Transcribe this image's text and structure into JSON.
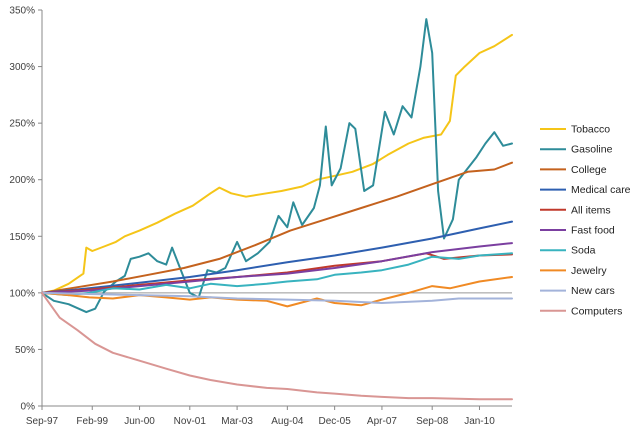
{
  "chart_data": {
    "type": "line",
    "ylim": [
      0,
      350
    ],
    "xlim": [
      "1997-09",
      "2010-12"
    ],
    "grid": false,
    "legend_position": "right",
    "y_ticks": [
      {
        "value": 0,
        "label": "0%"
      },
      {
        "value": 50,
        "label": "50%"
      },
      {
        "value": 100,
        "label": "100%"
      },
      {
        "value": 150,
        "label": "150%"
      },
      {
        "value": 200,
        "label": "200%"
      },
      {
        "value": 250,
        "label": "250%"
      },
      {
        "value": 300,
        "label": "300%"
      },
      {
        "value": 350,
        "label": "350%"
      }
    ],
    "x_ticks": [
      {
        "value": "1997-09",
        "label": "Sep-97"
      },
      {
        "value": "1999-02",
        "label": "Feb-99"
      },
      {
        "value": "2000-06",
        "label": "Jun-00"
      },
      {
        "value": "2001-11",
        "label": "Nov-01"
      },
      {
        "value": "2003-03",
        "label": "Mar-03"
      },
      {
        "value": "2004-08",
        "label": "Aug-04"
      },
      {
        "value": "2005-12",
        "label": "Dec-05"
      },
      {
        "value": "2007-04",
        "label": "Apr-07"
      },
      {
        "value": "2008-09",
        "label": "Sep-08"
      },
      {
        "value": "2010-01",
        "label": "Jan-10"
      }
    ],
    "series": [
      {
        "name": "Tobacco",
        "color": "#F5C518",
        "points": [
          [
            "1997-09",
            100
          ],
          [
            "1998-01",
            102
          ],
          [
            "1998-06",
            108
          ],
          [
            "1998-11",
            117
          ],
          [
            "1998-12",
            140
          ],
          [
            "1999-02",
            137
          ],
          [
            "1999-06",
            141
          ],
          [
            "1999-10",
            145
          ],
          [
            "2000-01",
            150
          ],
          [
            "2000-06",
            155
          ],
          [
            "2000-12",
            162
          ],
          [
            "2001-06",
            170
          ],
          [
            "2001-12",
            177
          ],
          [
            "2002-06",
            188
          ],
          [
            "2002-09",
            193
          ],
          [
            "2003-01",
            188
          ],
          [
            "2003-06",
            185
          ],
          [
            "2004-01",
            188
          ],
          [
            "2004-06",
            190
          ],
          [
            "2005-01",
            194
          ],
          [
            "2005-06",
            200
          ],
          [
            "2006-01",
            204
          ],
          [
            "2006-06",
            207
          ],
          [
            "2007-01",
            214
          ],
          [
            "2007-06",
            222
          ],
          [
            "2008-01",
            232
          ],
          [
            "2008-06",
            237
          ],
          [
            "2008-12",
            240
          ],
          [
            "2009-03",
            252
          ],
          [
            "2009-05",
            292
          ],
          [
            "2009-08",
            300
          ],
          [
            "2010-01",
            312
          ],
          [
            "2010-06",
            318
          ],
          [
            "2010-12",
            328
          ]
        ]
      },
      {
        "name": "Gasoline",
        "color": "#2E8C99",
        "points": [
          [
            "1997-09",
            100
          ],
          [
            "1998-01",
            93
          ],
          [
            "1998-06",
            90
          ],
          [
            "1998-12",
            83
          ],
          [
            "1999-03",
            86
          ],
          [
            "1999-06",
            101
          ],
          [
            "1999-10",
            110
          ],
          [
            "2000-01",
            115
          ],
          [
            "2000-03",
            130
          ],
          [
            "2000-06",
            132
          ],
          [
            "2000-09",
            135
          ],
          [
            "2000-12",
            128
          ],
          [
            "2001-03",
            125
          ],
          [
            "2001-05",
            140
          ],
          [
            "2001-08",
            120
          ],
          [
            "2001-11",
            100
          ],
          [
            "2002-02",
            96
          ],
          [
            "2002-05",
            120
          ],
          [
            "2002-08",
            118
          ],
          [
            "2002-11",
            122
          ],
          [
            "2003-03",
            145
          ],
          [
            "2003-06",
            128
          ],
          [
            "2003-10",
            135
          ],
          [
            "2004-02",
            145
          ],
          [
            "2004-05",
            168
          ],
          [
            "2004-08",
            158
          ],
          [
            "2004-10",
            180
          ],
          [
            "2005-01",
            160
          ],
          [
            "2005-05",
            175
          ],
          [
            "2005-07",
            195
          ],
          [
            "2005-09",
            247
          ],
          [
            "2005-11",
            195
          ],
          [
            "2006-02",
            210
          ],
          [
            "2006-05",
            250
          ],
          [
            "2006-07",
            245
          ],
          [
            "2006-10",
            190
          ],
          [
            "2007-01",
            195
          ],
          [
            "2007-05",
            260
          ],
          [
            "2007-08",
            240
          ],
          [
            "2007-11",
            265
          ],
          [
            "2008-02",
            255
          ],
          [
            "2008-05",
            300
          ],
          [
            "2008-07",
            342
          ],
          [
            "2008-09",
            312
          ],
          [
            "2008-11",
            190
          ],
          [
            "2009-01",
            148
          ],
          [
            "2009-04",
            165
          ],
          [
            "2009-06",
            200
          ],
          [
            "2009-09",
            210
          ],
          [
            "2009-12",
            220
          ],
          [
            "2010-03",
            232
          ],
          [
            "2010-06",
            242
          ],
          [
            "2010-09",
            230
          ],
          [
            "2010-12",
            232
          ]
        ]
      },
      {
        "name": "College",
        "color": "#C4621E",
        "points": [
          [
            "1997-09",
            100
          ],
          [
            "1998-09",
            105
          ],
          [
            "1999-09",
            110
          ],
          [
            "2000-09",
            116
          ],
          [
            "2001-09",
            122
          ],
          [
            "2002-09",
            130
          ],
          [
            "2003-09",
            142
          ],
          [
            "2004-09",
            155
          ],
          [
            "2005-09",
            165
          ],
          [
            "2006-09",
            175
          ],
          [
            "2007-09",
            185
          ],
          [
            "2008-09",
            196
          ],
          [
            "2009-09",
            207
          ],
          [
            "2010-06",
            209
          ],
          [
            "2010-12",
            215
          ]
        ]
      },
      {
        "name": "Medical care",
        "color": "#2E5FB0",
        "points": [
          [
            "1997-09",
            100
          ],
          [
            "1999-01",
            104
          ],
          [
            "2000-06",
            109
          ],
          [
            "2001-11",
            114
          ],
          [
            "2003-03",
            120
          ],
          [
            "2004-08",
            127
          ],
          [
            "2005-12",
            133
          ],
          [
            "2007-04",
            140
          ],
          [
            "2008-09",
            148
          ],
          [
            "2010-01",
            157
          ],
          [
            "2010-12",
            163
          ]
        ]
      },
      {
        "name": "All items",
        "color": "#C0392B",
        "points": [
          [
            "1997-09",
            100
          ],
          [
            "1999-01",
            103
          ],
          [
            "2000-06",
            107
          ],
          [
            "2001-11",
            111
          ],
          [
            "2003-03",
            114
          ],
          [
            "2004-08",
            118
          ],
          [
            "2005-12",
            124
          ],
          [
            "2007-04",
            128
          ],
          [
            "2008-07",
            135
          ],
          [
            "2009-01",
            130
          ],
          [
            "2010-01",
            133
          ],
          [
            "2010-12",
            134
          ]
        ]
      },
      {
        "name": "Fast food",
        "color": "#7B3FA0",
        "points": [
          [
            "1997-09",
            100
          ],
          [
            "1999-01",
            102
          ],
          [
            "2000-06",
            106
          ],
          [
            "2001-11",
            110
          ],
          [
            "2003-03",
            114
          ],
          [
            "2004-08",
            117
          ],
          [
            "2005-12",
            122
          ],
          [
            "2007-04",
            128
          ],
          [
            "2008-09",
            136
          ],
          [
            "2010-01",
            141
          ],
          [
            "2010-12",
            144
          ]
        ]
      },
      {
        "name": "Soda",
        "color": "#38B3BF",
        "points": [
          [
            "1997-09",
            100
          ],
          [
            "1998-06",
            98
          ],
          [
            "1999-01",
            100
          ],
          [
            "1999-09",
            104
          ],
          [
            "2000-06",
            103
          ],
          [
            "2001-03",
            107
          ],
          [
            "2001-11",
            104
          ],
          [
            "2002-06",
            108
          ],
          [
            "2003-03",
            106
          ],
          [
            "2004-01",
            108
          ],
          [
            "2004-08",
            110
          ],
          [
            "2005-06",
            112
          ],
          [
            "2005-12",
            116
          ],
          [
            "2006-09",
            118
          ],
          [
            "2007-04",
            120
          ],
          [
            "2008-01",
            125
          ],
          [
            "2008-09",
            132
          ],
          [
            "2009-06",
            130
          ],
          [
            "2010-01",
            133
          ],
          [
            "2010-12",
            135
          ]
        ]
      },
      {
        "name": "Jewelry",
        "color": "#F08A24",
        "points": [
          [
            "1997-09",
            100
          ],
          [
            "1998-06",
            98
          ],
          [
            "1999-01",
            96
          ],
          [
            "1999-09",
            95
          ],
          [
            "2000-06",
            98
          ],
          [
            "2001-03",
            96
          ],
          [
            "2001-11",
            94
          ],
          [
            "2002-06",
            96
          ],
          [
            "2003-03",
            94
          ],
          [
            "2004-01",
            93
          ],
          [
            "2004-08",
            88
          ],
          [
            "2005-06",
            95
          ],
          [
            "2005-12",
            91
          ],
          [
            "2006-09",
            89
          ],
          [
            "2007-04",
            94
          ],
          [
            "2008-01",
            100
          ],
          [
            "2008-09",
            106
          ],
          [
            "2009-03",
            104
          ],
          [
            "2010-01",
            110
          ],
          [
            "2010-12",
            114
          ]
        ]
      },
      {
        "name": "New cars",
        "color": "#A3B3DA",
        "points": [
          [
            "1997-09",
            100
          ],
          [
            "1999-01",
            99
          ],
          [
            "2000-06",
            98
          ],
          [
            "2001-11",
            97
          ],
          [
            "2003-03",
            95
          ],
          [
            "2004-08",
            94
          ],
          [
            "2005-12",
            93
          ],
          [
            "2007-04",
            91
          ],
          [
            "2008-09",
            93
          ],
          [
            "2009-06",
            95
          ],
          [
            "2010-01",
            95
          ],
          [
            "2010-12",
            95
          ]
        ]
      },
      {
        "name": "Computers",
        "color": "#D99694",
        "points": [
          [
            "1997-09",
            100
          ],
          [
            "1998-03",
            78
          ],
          [
            "1998-09",
            67
          ],
          [
            "1999-03",
            55
          ],
          [
            "1999-09",
            47
          ],
          [
            "2000-06",
            40
          ],
          [
            "2001-03",
            33
          ],
          [
            "2001-11",
            27
          ],
          [
            "2002-06",
            23
          ],
          [
            "2003-03",
            19
          ],
          [
            "2004-01",
            16
          ],
          [
            "2004-08",
            15
          ],
          [
            "2005-06",
            12
          ],
          [
            "2005-12",
            11
          ],
          [
            "2006-09",
            9
          ],
          [
            "2007-04",
            8
          ],
          [
            "2008-01",
            7
          ],
          [
            "2008-09",
            7
          ],
          [
            "2010-01",
            6
          ],
          [
            "2010-12",
            6
          ]
        ]
      }
    ]
  }
}
